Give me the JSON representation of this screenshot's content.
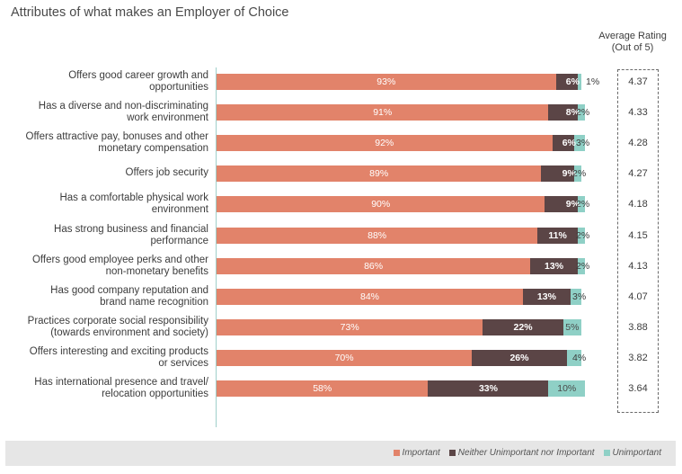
{
  "chart_data": {
    "type": "bar",
    "stacked": true,
    "orientation": "horizontal",
    "title": "Attributes of what makes an Employer of Choice",
    "avg_header_line1": "Average Rating",
    "avg_header_line2": "(Out of 5)",
    "colors": {
      "important": "#e2836a",
      "neither": "#5b4546",
      "unimportant": "#8fd0c6"
    },
    "series_names": [
      "Important",
      "Neither Unimportant nor Important",
      "Unimportant"
    ],
    "rows": [
      {
        "label": [
          "Offers good career growth and",
          "opportunities"
        ],
        "important": 93,
        "neither": 6,
        "unimportant": 1,
        "avg": "4.37"
      },
      {
        "label": [
          "Has a diverse and non-discriminating",
          "work environment"
        ],
        "important": 91,
        "neither": 8,
        "unimportant": 2,
        "avg": "4.33"
      },
      {
        "label": [
          "Offers attractive pay, bonuses and other",
          "monetary compensation"
        ],
        "important": 92,
        "neither": 6,
        "unimportant": 3,
        "avg": "4.28"
      },
      {
        "label": [
          "Offers job security"
        ],
        "important": 89,
        "neither": 9,
        "unimportant": 2,
        "avg": "4.27"
      },
      {
        "label": [
          "Has a comfortable physical work",
          "environment"
        ],
        "important": 90,
        "neither": 9,
        "unimportant": 2,
        "avg": "4.18"
      },
      {
        "label": [
          "Has strong business and financial",
          "performance"
        ],
        "important": 88,
        "neither": 11,
        "unimportant": 2,
        "avg": "4.15"
      },
      {
        "label": [
          "Offers good employee perks and other",
          "non-monetary benefits"
        ],
        "important": 86,
        "neither": 13,
        "unimportant": 2,
        "avg": "4.13"
      },
      {
        "label": [
          "Has good company reputation and",
          "brand name recognition"
        ],
        "important": 84,
        "neither": 13,
        "unimportant": 3,
        "avg": "4.07"
      },
      {
        "label": [
          "Practices corporate social responsibility",
          "(towards environment and society)"
        ],
        "important": 73,
        "neither": 22,
        "unimportant": 5,
        "avg": "3.88"
      },
      {
        "label": [
          "Offers interesting and exciting products",
          "or services"
        ],
        "important": 70,
        "neither": 26,
        "unimportant": 4,
        "avg": "3.82"
      },
      {
        "label": [
          "Has international presence and travel/",
          "relocation opportunities"
        ],
        "important": 58,
        "neither": 33,
        "unimportant": 10,
        "avg": "3.64"
      }
    ]
  }
}
